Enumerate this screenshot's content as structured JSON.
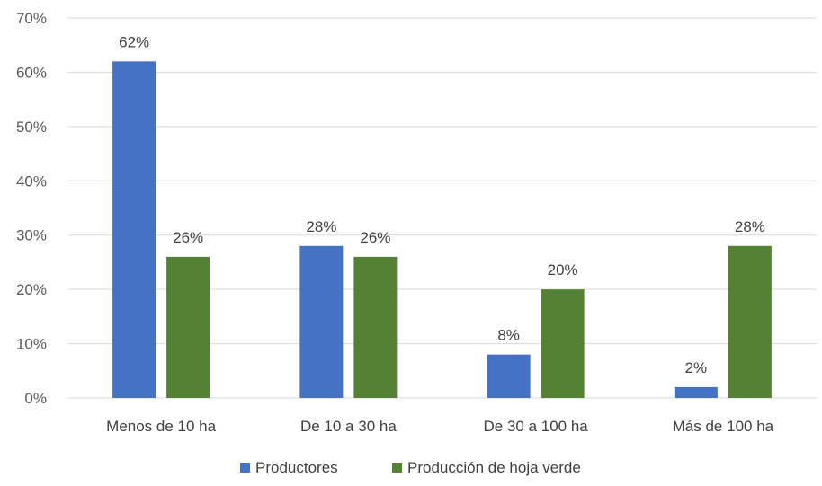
{
  "chart_data": {
    "type": "bar",
    "categories": [
      "Menos de 10 ha",
      "De 10 a 30 ha",
      "De 30 a 100 ha",
      "Más de 100 ha"
    ],
    "series": [
      {
        "name": "Productores",
        "values": [
          62,
          28,
          8,
          2
        ],
        "labels": [
          "62%",
          "28%",
          "8%",
          "2%"
        ],
        "color": "#4472C4"
      },
      {
        "name": "Producción de hoja verde",
        "values": [
          26,
          26,
          20,
          28
        ],
        "labels": [
          "26%",
          "26%",
          "20%",
          "28%"
        ],
        "color": "#548235"
      }
    ],
    "ylim": [
      0,
      70
    ],
    "yticks": [
      0,
      10,
      20,
      30,
      40,
      50,
      60,
      70
    ],
    "ytick_labels": [
      "0%",
      "10%",
      "20%",
      "30%",
      "40%",
      "50%",
      "60%",
      "70%"
    ],
    "gridlines": true,
    "legend_position": "bottom",
    "gridline_color": "#D9D9D9",
    "title": "",
    "xlabel": "",
    "ylabel": ""
  }
}
